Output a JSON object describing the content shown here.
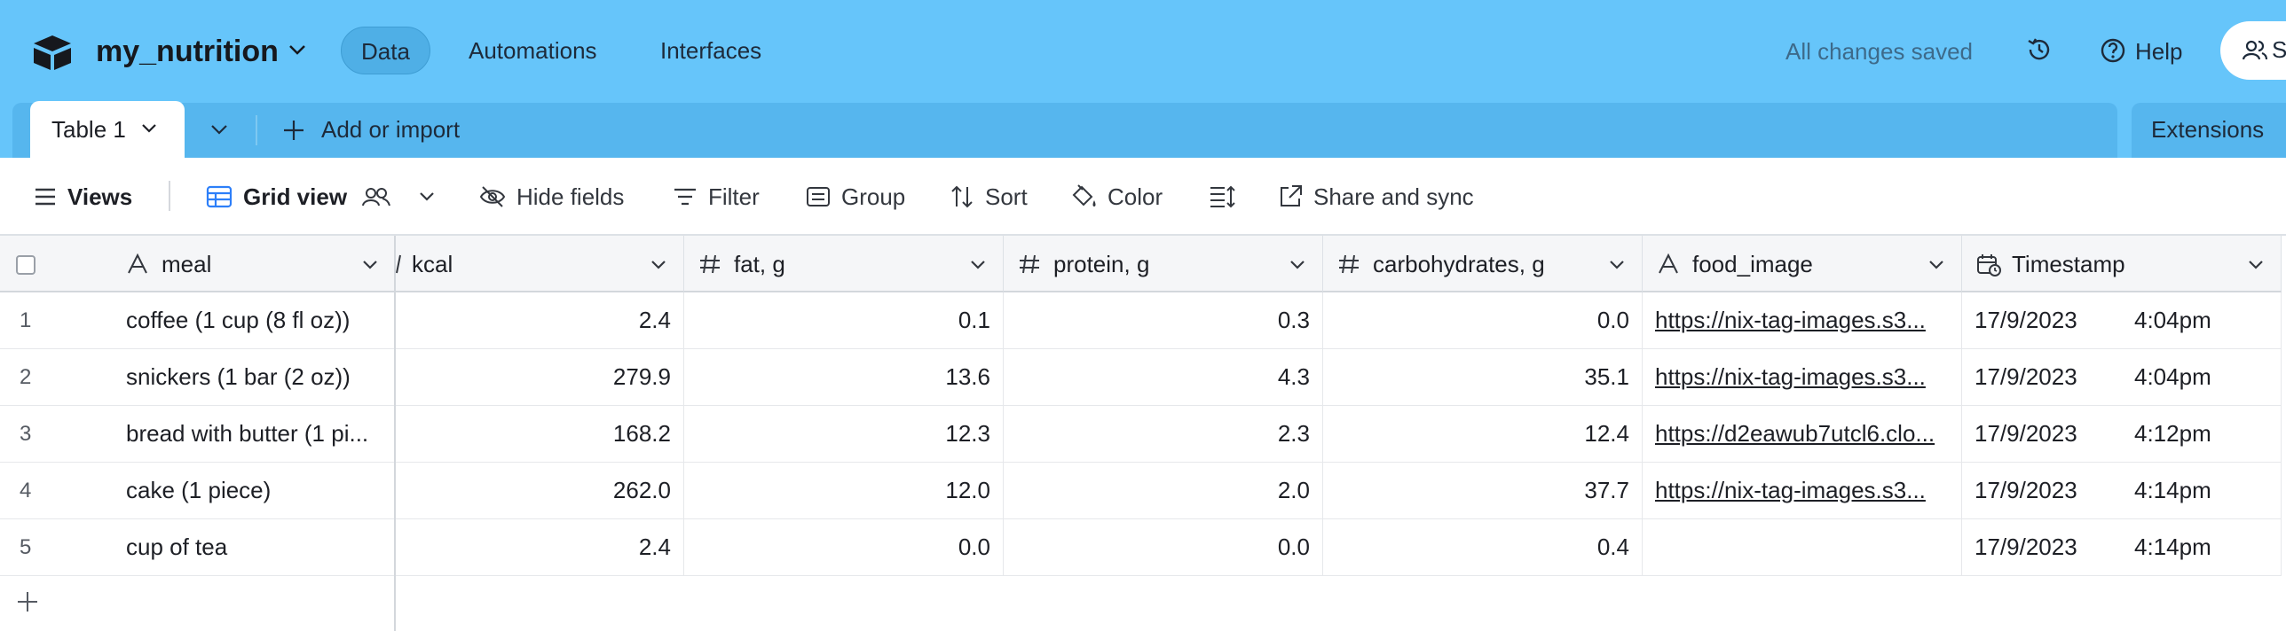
{
  "app": {
    "base_name": "my_nutrition",
    "nav": [
      "Data",
      "Automations",
      "Interfaces"
    ],
    "status": "All changes saved",
    "help_label": "Help",
    "share_label": "S"
  },
  "tabs": {
    "table_name": "Table 1",
    "add_label": "Add or import",
    "extensions_label": "Extensions"
  },
  "viewbar": {
    "views_label": "Views",
    "grid_view_label": "Grid view",
    "hide_fields_label": "Hide fields",
    "filter_label": "Filter",
    "group_label": "Group",
    "sort_label": "Sort",
    "color_label": "Color",
    "share_label": "Share and sync"
  },
  "columns": [
    "meal",
    "kcal",
    "fat, g",
    "protein, g",
    "carbohydrates, g",
    "food_image",
    "Timestamp"
  ],
  "rows": [
    {
      "n": "1",
      "meal": "coffee (1 cup (8 fl oz))",
      "kcal": "2.4",
      "fat": "0.1",
      "protein": "0.3",
      "carbs": "0.0",
      "image": "https://nix-tag-images.s3...",
      "date": "17/9/2023",
      "time": "4:04pm"
    },
    {
      "n": "2",
      "meal": "snickers (1 bar (2 oz))",
      "kcal": "279.9",
      "fat": "13.6",
      "protein": "4.3",
      "carbs": "35.1",
      "image": "https://nix-tag-images.s3...",
      "date": "17/9/2023",
      "time": "4:04pm"
    },
    {
      "n": "3",
      "meal": "bread with butter (1 pi...",
      "kcal": "168.2",
      "fat": "12.3",
      "protein": "2.3",
      "carbs": "12.4",
      "image": "https://d2eawub7utcl6.clo...",
      "date": "17/9/2023",
      "time": "4:12pm"
    },
    {
      "n": "4",
      "meal": "cake (1 piece)",
      "kcal": "262.0",
      "fat": "12.0",
      "protein": "2.0",
      "carbs": "37.7",
      "image": "https://nix-tag-images.s3...",
      "date": "17/9/2023",
      "time": "4:14pm"
    },
    {
      "n": "5",
      "meal": "cup of tea",
      "kcal": "2.4",
      "fat": "0.0",
      "protein": "0.0",
      "carbs": "0.4",
      "image": "",
      "date": "17/9/2023",
      "time": "4:14pm"
    }
  ]
}
